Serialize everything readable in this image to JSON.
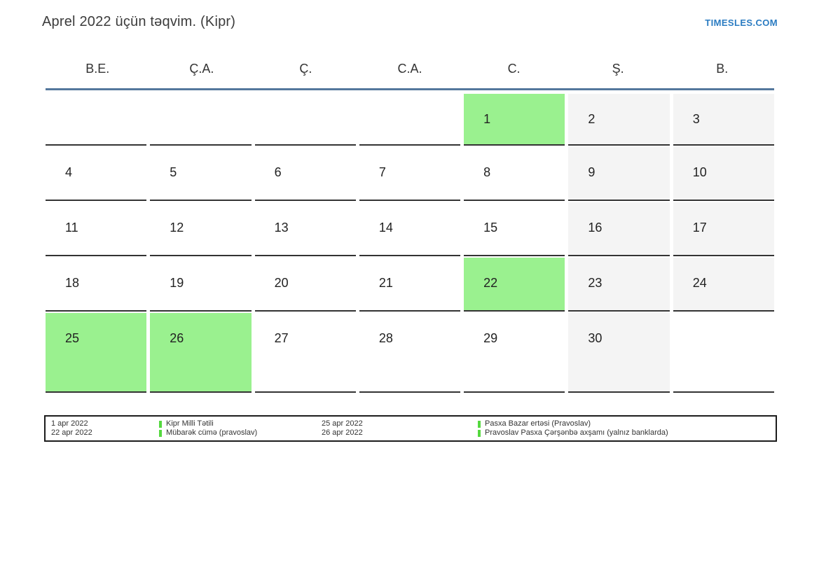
{
  "page": {
    "title": "Aprel 2022 üçün təqvim. (Kipr)",
    "site_link": "TIMESLES.COM"
  },
  "calendar": {
    "day_headers": [
      "B.E.",
      "Ç.A.",
      "Ç.",
      "C.A.",
      "C.",
      "Ş.",
      "B."
    ],
    "weeks": [
      [
        {
          "day": "",
          "type": "empty"
        },
        {
          "day": "",
          "type": "empty"
        },
        {
          "day": "",
          "type": "empty"
        },
        {
          "day": "",
          "type": "empty"
        },
        {
          "day": "1",
          "type": "holiday"
        },
        {
          "day": "2",
          "type": "weekend"
        },
        {
          "day": "3",
          "type": "weekend"
        }
      ],
      [
        {
          "day": "4",
          "type": "workday"
        },
        {
          "day": "5",
          "type": "workday"
        },
        {
          "day": "6",
          "type": "workday"
        },
        {
          "day": "7",
          "type": "workday"
        },
        {
          "day": "8",
          "type": "workday"
        },
        {
          "day": "9",
          "type": "weekend"
        },
        {
          "day": "10",
          "type": "weekend"
        }
      ],
      [
        {
          "day": "11",
          "type": "workday"
        },
        {
          "day": "12",
          "type": "workday"
        },
        {
          "day": "13",
          "type": "workday"
        },
        {
          "day": "14",
          "type": "workday"
        },
        {
          "day": "15",
          "type": "workday"
        },
        {
          "day": "16",
          "type": "weekend"
        },
        {
          "day": "17",
          "type": "weekend"
        }
      ],
      [
        {
          "day": "18",
          "type": "workday"
        },
        {
          "day": "19",
          "type": "workday"
        },
        {
          "day": "20",
          "type": "workday"
        },
        {
          "day": "21",
          "type": "workday"
        },
        {
          "day": "22",
          "type": "holiday"
        },
        {
          "day": "23",
          "type": "weekend"
        },
        {
          "day": "24",
          "type": "weekend"
        }
      ],
      [
        {
          "day": "25",
          "type": "holiday"
        },
        {
          "day": "26",
          "type": "holiday"
        },
        {
          "day": "27",
          "type": "workday"
        },
        {
          "day": "28",
          "type": "workday"
        },
        {
          "day": "29",
          "type": "workday"
        },
        {
          "day": "30",
          "type": "weekend"
        },
        {
          "day": "",
          "type": "empty"
        }
      ]
    ]
  },
  "legend": {
    "groups": [
      {
        "items": [
          {
            "date": "1 apr 2022",
            "label": "Kipr Milli Tətili"
          },
          {
            "date": "22 apr 2022",
            "label": "Mübarək cümə (pravoslav)"
          }
        ]
      },
      {
        "items": [
          {
            "date": "25 apr 2022",
            "label": "Pasxa Bazar ertəsi (Pravoslav)"
          },
          {
            "date": "26 apr 2022",
            "label": "Pravoslav Pasxa Çərşənbə axşamı (yalnız banklarda)"
          }
        ]
      }
    ]
  },
  "colors": {
    "holiday_green": "#9af18f",
    "weekend_gray": "#f4f4f4",
    "header_line_blue": "#54779c",
    "cell_border_dark": "#333333",
    "legend_bar_green": "#55d83f",
    "link_blue": "#2b7cc2"
  }
}
